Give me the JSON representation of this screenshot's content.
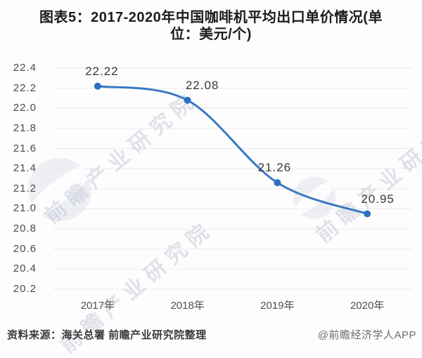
{
  "title": {
    "line1": "图表5：2017-2020年中国咖啡机平均出口单价情况(单",
    "line2": "位：美元/个)"
  },
  "watermark": {
    "text": "前瞻产业研究院"
  },
  "footer": {
    "source": "资料来源：海关总署 前瞻产业研究院整理",
    "credit": "@前瞻经济学人APP"
  },
  "chart_data": {
    "type": "line",
    "title": "图表5：2017-2020年中国咖啡机平均出口单价情况(单位：美元/个)",
    "categories": [
      "2017年",
      "2018年",
      "2019年",
      "2020年"
    ],
    "values": [
      22.22,
      22.08,
      21.26,
      20.95
    ],
    "data_labels": [
      "22.22",
      "22.08",
      "21.26",
      "20.95"
    ],
    "xlabel": "",
    "ylabel": "",
    "ylim": [
      20.2,
      22.4
    ],
    "y_tick_step": 0.2,
    "grid": true,
    "legend": "none",
    "line_color": "#3a78c4",
    "marker_color": "#2e6fc0",
    "gridline_color": "#ebebef"
  }
}
